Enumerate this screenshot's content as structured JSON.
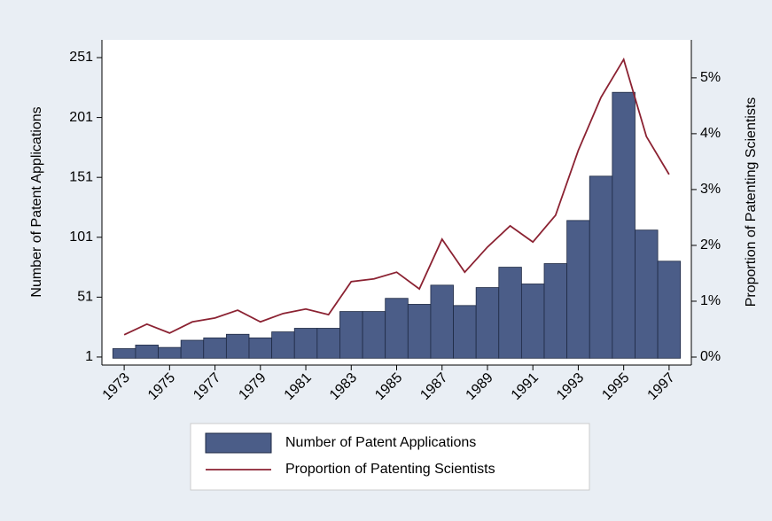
{
  "chart_data": {
    "type": "bar",
    "y_label": "Number of Patent Applications",
    "y2_label": "Proportion of Patenting Scientists",
    "x": [
      1973,
      1974,
      1975,
      1976,
      1977,
      1978,
      1979,
      1980,
      1981,
      1982,
      1983,
      1984,
      1985,
      1986,
      1987,
      1988,
      1989,
      1990,
      1991,
      1992,
      1993,
      1994,
      1995,
      1996,
      1997
    ],
    "xlim": [
      1972.02,
      1997.98
    ],
    "xticks": [
      1973,
      1975,
      1977,
      1979,
      1981,
      1983,
      1985,
      1987,
      1989,
      1991,
      1993,
      1995,
      1997
    ],
    "ylim": [
      -5.7,
      265.8
    ],
    "yticks": [
      1,
      51,
      101,
      151,
      201,
      251
    ],
    "y2lim": [
      -0.143,
      5.68
    ],
    "y2ticks": [
      {
        "value": 0,
        "label": "0%"
      },
      {
        "value": 1,
        "label": "1%"
      },
      {
        "value": 2,
        "label": "2%"
      },
      {
        "value": 3,
        "label": "3%"
      },
      {
        "value": 4,
        "label": "4%"
      },
      {
        "value": 5,
        "label": "5%"
      }
    ],
    "legend": "bottom",
    "series": [
      {
        "name": "Number of Patent Applications",
        "type": "bar",
        "color": "#4b5d88",
        "values": [
          8,
          11,
          9,
          15,
          17,
          20,
          17,
          22,
          25,
          25,
          39,
          39,
          50,
          45,
          61,
          44,
          59,
          76,
          62,
          79,
          115,
          152,
          222,
          107,
          81
        ]
      },
      {
        "name": "Proportion of Patenting Scientists",
        "type": "line",
        "axis": "y2",
        "color": "#8b2232",
        "values": [
          0.4,
          0.59,
          0.43,
          0.63,
          0.7,
          0.84,
          0.63,
          0.78,
          0.86,
          0.76,
          1.35,
          1.4,
          1.52,
          1.22,
          2.11,
          1.52,
          1.97,
          2.35,
          2.06,
          2.54,
          3.7,
          4.65,
          5.33,
          3.95,
          3.27
        ]
      }
    ]
  }
}
